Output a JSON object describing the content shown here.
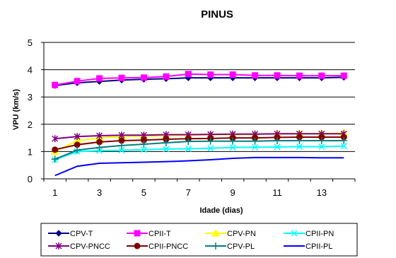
{
  "chart_data": {
    "type": "line",
    "title": "PINUS",
    "xlabel": "Idade (dias)",
    "ylabel": "VPU (km/s)",
    "x": [
      1,
      2,
      3,
      4,
      5,
      6,
      7,
      8,
      9,
      10,
      11,
      12,
      13,
      14
    ],
    "xticks": [
      "1",
      "3",
      "5",
      "7",
      "9",
      "11",
      "13"
    ],
    "yticks": [
      "0",
      "1",
      "2",
      "3",
      "4",
      "5"
    ],
    "xlim": [
      0.5,
      14.5
    ],
    "ylim": [
      0,
      5
    ],
    "grid": "horizontal",
    "legend_position": "bottom",
    "series": [
      {
        "name": "CPV-T",
        "color": "#000080",
        "marker": "diamond",
        "values": [
          3.42,
          3.52,
          3.57,
          3.62,
          3.65,
          3.67,
          3.7,
          3.7,
          3.7,
          3.7,
          3.7,
          3.7,
          3.7,
          3.72
        ]
      },
      {
        "name": "CPII-T",
        "color": "#ff00ff",
        "marker": "square",
        "values": [
          3.44,
          3.58,
          3.68,
          3.7,
          3.71,
          3.75,
          3.84,
          3.82,
          3.82,
          3.79,
          3.79,
          3.78,
          3.78,
          3.78
        ]
      },
      {
        "name": "CPV-PN",
        "color": "#ffff00",
        "marker": "triangle",
        "values": [
          1.0,
          1.4,
          1.5,
          1.55,
          1.57,
          1.58,
          1.6,
          1.62,
          1.62,
          1.63,
          1.65,
          1.66,
          1.66,
          1.68
        ]
      },
      {
        "name": "CPII-PN",
        "color": "#00ffff",
        "marker": "x",
        "values": [
          0.7,
          1.0,
          1.03,
          1.05,
          1.07,
          1.09,
          1.1,
          1.12,
          1.15,
          1.16,
          1.17,
          1.18,
          1.18,
          1.2
        ]
      },
      {
        "name": "CPV-PNCC",
        "color": "#800080",
        "marker": "star",
        "values": [
          1.47,
          1.55,
          1.58,
          1.6,
          1.6,
          1.62,
          1.62,
          1.63,
          1.64,
          1.64,
          1.65,
          1.65,
          1.65,
          1.65
        ]
      },
      {
        "name": "CPII-PNCC",
        "color": "#800000",
        "marker": "circle",
        "values": [
          1.07,
          1.25,
          1.35,
          1.4,
          1.42,
          1.45,
          1.47,
          1.48,
          1.5,
          1.5,
          1.52,
          1.53,
          1.53,
          1.53
        ]
      },
      {
        "name": "CPV-PL",
        "color": "#008080",
        "marker": "plus",
        "values": [
          0.72,
          1.05,
          1.15,
          1.22,
          1.27,
          1.32,
          1.37,
          1.38,
          1.38,
          1.38,
          1.4,
          1.4,
          1.4,
          1.4
        ]
      },
      {
        "name": "CPII-PL",
        "color": "#0000ff",
        "marker": "none",
        "values": [
          0.12,
          0.46,
          0.57,
          0.59,
          0.61,
          0.63,
          0.66,
          0.7,
          0.75,
          0.78,
          0.78,
          0.78,
          0.77,
          0.77
        ]
      }
    ]
  }
}
